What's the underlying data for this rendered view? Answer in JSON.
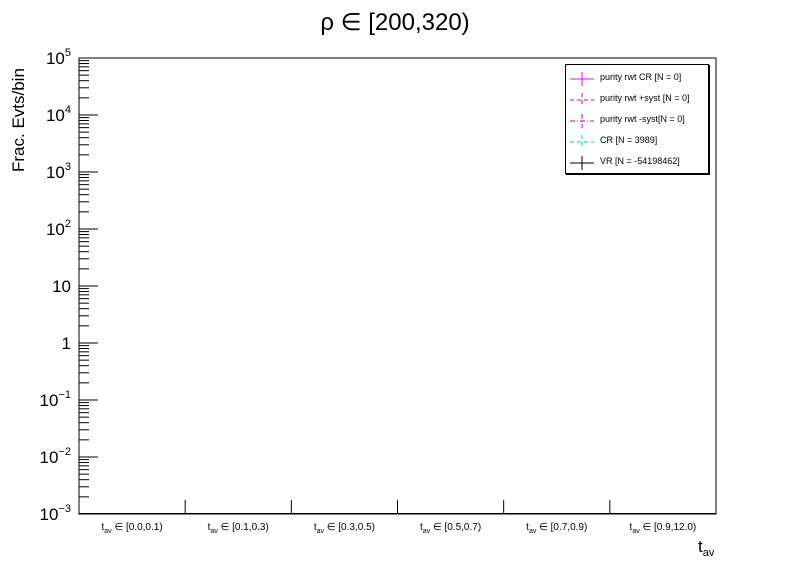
{
  "chart_data": {
    "type": "line",
    "title": "ρ ∈ [200,320)",
    "ylabel": "Frac. Evts/bin",
    "xlabel_base": "t",
    "xlabel_sub": "av",
    "y_scale": "log",
    "ylim": [
      0.001,
      100000
    ],
    "y_ticks": [
      {
        "value": 0.001,
        "base": "10",
        "exp": "−3"
      },
      {
        "value": 0.01,
        "base": "10",
        "exp": "−2"
      },
      {
        "value": 0.1,
        "base": "10",
        "exp": "−1"
      },
      {
        "value": 1,
        "base": "1",
        "exp": ""
      },
      {
        "value": 10,
        "base": "10",
        "exp": ""
      },
      {
        "value": 100,
        "base": "10",
        "exp": "2"
      },
      {
        "value": 1000,
        "base": "10",
        "exp": "3"
      },
      {
        "value": 10000,
        "base": "10",
        "exp": "4"
      },
      {
        "value": 100000,
        "base": "10",
        "exp": "5"
      }
    ],
    "categories": [
      {
        "base": "t",
        "sub": "av",
        "text": " ∈ [0.0,0.1)"
      },
      {
        "base": "t",
        "sub": "av",
        "text": " ∈ [0.1,0.3)"
      },
      {
        "base": "t",
        "sub": "av",
        "text": " ∈ [0.3,0.5)"
      },
      {
        "base": "t",
        "sub": "av",
        "text": " ∈ [0.5,0.7)"
      },
      {
        "base": "t",
        "sub": "av",
        "text": " ∈ [0.7,0.9)"
      },
      {
        "base": "t",
        "sub": "av",
        "text": " ∈ [0.9,12.0)"
      }
    ],
    "grid": false,
    "legend_position": "top-right",
    "series": [
      {
        "name": "purity rwt CR [N = 0]",
        "color": "#ff00ff",
        "style": "solid",
        "values": [
          0.001,
          0.001,
          0.001,
          0.001,
          0.001,
          0.001
        ]
      },
      {
        "name": "purity rwt +syst [N = 0]",
        "color": "#cc00cc",
        "style": "dashed",
        "values": [
          0.001,
          0.001,
          0.001,
          0.001,
          0.001,
          0.001
        ]
      },
      {
        "name": "purity rwt -syst[N = 0]",
        "color": "#cc00cc",
        "style": "dashdot",
        "values": [
          0.001,
          0.001,
          0.001,
          0.001,
          0.001,
          0.001
        ]
      },
      {
        "name": "CR [N = 3989]",
        "color": "#00cccc",
        "style": "dashed",
        "values": [
          0.001,
          0.001,
          0.001,
          0.001,
          0.001,
          0.001
        ]
      },
      {
        "name": "VR [N = -54198462]",
        "color": "#000000",
        "style": "solid",
        "values": [
          0.001,
          0.001,
          0.001,
          0.001,
          0.001,
          0.001
        ]
      }
    ]
  }
}
